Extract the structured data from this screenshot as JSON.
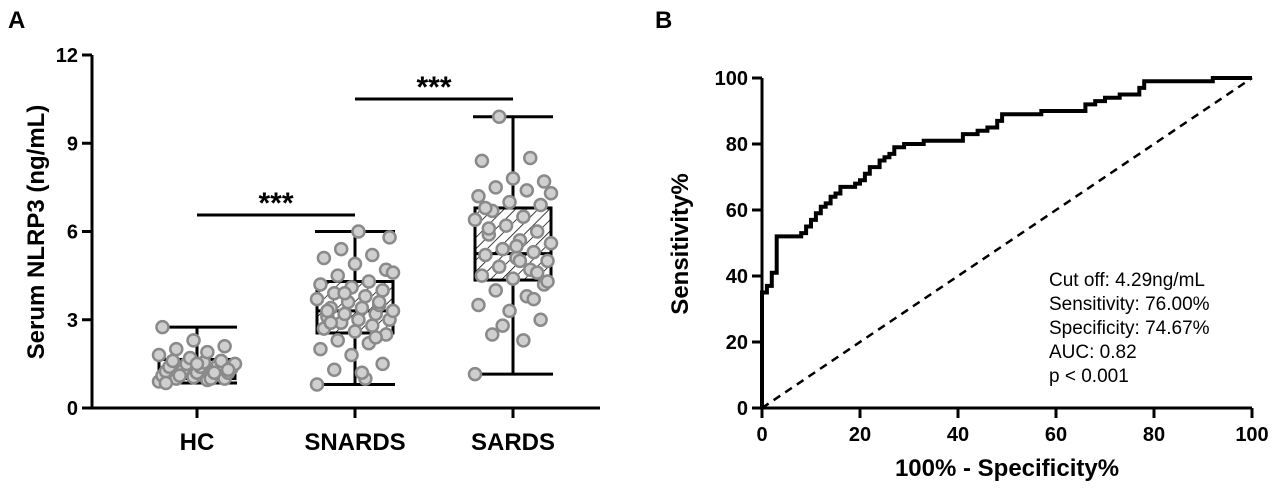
{
  "chart_data": [
    {
      "panel": "A",
      "type": "box",
      "ylabel": "Serum NLRP3 (ng/mL)",
      "ylim": [
        0,
        12
      ],
      "yticks": [
        0,
        3,
        6,
        9,
        12
      ],
      "categories": [
        "HC",
        "SNARDS",
        "SARDS"
      ],
      "boxes": [
        {
          "name": "HC",
          "min": 0.85,
          "q1": 1.0,
          "median": 1.3,
          "q3": 1.65,
          "max": 2.75,
          "hatched": false
        },
        {
          "name": "SNARDS",
          "min": 0.8,
          "q1": 2.55,
          "median": 3.3,
          "q3": 4.3,
          "max": 6.0,
          "hatched": true
        },
        {
          "name": "SARDS",
          "min": 1.15,
          "q1": 4.35,
          "median": 5.25,
          "q3": 6.8,
          "max": 9.9,
          "hatched": true
        }
      ],
      "points": [
        [
          0.9,
          0.95,
          1.0,
          1.0,
          1.05,
          1.1,
          1.1,
          1.15,
          1.2,
          1.2,
          1.25,
          1.3,
          1.3,
          1.35,
          1.4,
          1.4,
          1.45,
          1.5,
          1.5,
          1.55,
          1.6,
          1.6,
          1.7,
          1.8,
          1.9,
          2.0,
          2.1,
          2.3,
          2.75,
          1.0,
          1.1,
          1.3,
          1.5,
          0.85,
          1.2
        ],
        [
          0.8,
          1.0,
          1.3,
          1.5,
          1.8,
          2.0,
          2.2,
          2.3,
          2.5,
          2.6,
          2.7,
          2.8,
          2.9,
          3.0,
          3.0,
          3.1,
          3.2,
          3.2,
          3.3,
          3.4,
          3.4,
          3.5,
          3.6,
          3.7,
          3.8,
          3.9,
          4.0,
          4.1,
          4.2,
          4.3,
          4.5,
          4.7,
          4.9,
          5.1,
          5.2,
          5.4,
          5.8,
          6.0,
          3.3,
          2.4,
          3.9,
          4.6,
          1.2,
          2.9,
          3.6
        ],
        [
          1.15,
          2.3,
          2.5,
          3.0,
          3.3,
          3.5,
          3.8,
          4.0,
          4.2,
          4.4,
          4.5,
          4.7,
          4.8,
          5.0,
          5.1,
          5.2,
          5.3,
          5.4,
          5.6,
          5.7,
          5.9,
          6.0,
          6.2,
          6.4,
          6.5,
          6.7,
          6.9,
          7.0,
          7.2,
          7.4,
          7.5,
          7.7,
          7.8,
          8.4,
          8.5,
          9.9,
          4.3,
          5.5,
          6.8,
          3.7,
          2.8,
          7.3,
          5.0,
          6.1,
          4.6
        ]
      ],
      "significance": [
        {
          "from": "HC",
          "to": "SNARDS",
          "label": "***"
        },
        {
          "from": "SNARDS",
          "to": "SARDS",
          "label": "***"
        }
      ]
    },
    {
      "panel": "B",
      "type": "line",
      "xlabel": "100% - Specificity%",
      "ylabel": "Sensitivity%",
      "xlim": [
        0,
        100
      ],
      "ylim": [
        0,
        100
      ],
      "xticks": [
        0,
        20,
        40,
        60,
        80,
        100
      ],
      "yticks": [
        0,
        20,
        40,
        60,
        80,
        100
      ],
      "series": [
        {
          "style": "step",
          "values": [
            [
              0,
              0
            ],
            [
              0,
              35
            ],
            [
              1,
              35
            ],
            [
              1,
              37
            ],
            [
              2,
              37
            ],
            [
              2,
              41
            ],
            [
              3,
              41
            ],
            [
              3,
              52
            ],
            [
              8,
              52
            ],
            [
              8,
              53
            ],
            [
              9,
              53
            ],
            [
              9,
              55
            ],
            [
              10,
              55
            ],
            [
              10,
              57
            ],
            [
              11,
              57
            ],
            [
              11,
              59
            ],
            [
              12,
              59
            ],
            [
              12,
              61
            ],
            [
              13,
              61
            ],
            [
              13,
              62
            ],
            [
              14,
              62
            ],
            [
              14,
              64
            ],
            [
              15,
              64
            ],
            [
              15,
              65
            ],
            [
              16,
              65
            ],
            [
              16,
              67
            ],
            [
              19,
              67
            ],
            [
              19,
              68
            ],
            [
              20,
              68
            ],
            [
              20,
              69
            ],
            [
              21,
              69
            ],
            [
              21,
              71
            ],
            [
              22,
              71
            ],
            [
              22,
              73
            ],
            [
              24,
              73
            ],
            [
              24,
              75
            ],
            [
              25,
              75
            ],
            [
              25,
              76
            ],
            [
              26,
              76
            ],
            [
              26,
              77
            ],
            [
              27,
              77
            ],
            [
              27,
              79
            ],
            [
              29,
              79
            ],
            [
              29,
              80
            ],
            [
              33,
              80
            ],
            [
              33,
              81
            ],
            [
              41,
              81
            ],
            [
              41,
              83
            ],
            [
              44,
              83
            ],
            [
              44,
              84
            ],
            [
              46,
              84
            ],
            [
              46,
              85
            ],
            [
              48,
              85
            ],
            [
              48,
              87
            ],
            [
              49,
              87
            ],
            [
              49,
              89
            ],
            [
              57,
              89
            ],
            [
              57,
              90
            ],
            [
              66,
              90
            ],
            [
              66,
              92
            ],
            [
              68,
              92
            ],
            [
              68,
              93
            ],
            [
              70,
              93
            ],
            [
              70,
              94
            ],
            [
              73,
              94
            ],
            [
              73,
              95
            ],
            [
              77,
              95
            ],
            [
              77,
              97
            ],
            [
              78,
              97
            ],
            [
              78,
              99
            ],
            [
              92,
              99
            ],
            [
              92,
              100
            ],
            [
              100,
              100
            ]
          ]
        },
        {
          "style": "dashed",
          "values": [
            [
              0,
              0
            ],
            [
              100,
              100
            ]
          ]
        }
      ],
      "annotations": [
        "Cut off: 4.29ng/mL",
        "Sensitivity: 76.00%",
        "Specificity: 74.67%",
        "AUC: 0.82",
        "p < 0.001"
      ]
    }
  ]
}
